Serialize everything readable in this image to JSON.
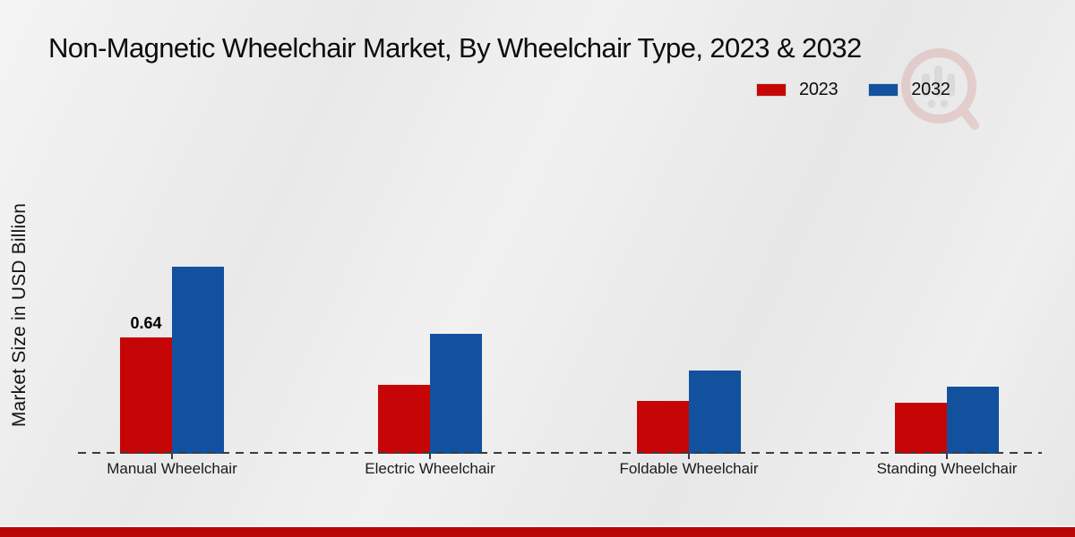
{
  "title": "Non-Magnetic Wheelchair Market, By Wheelchair Type, 2023 & 2032",
  "y_axis_label": "Market Size in USD Billion",
  "legend": {
    "items": [
      {
        "label": "2023",
        "color": "#c60606"
      },
      {
        "label": "2032",
        "color": "#11519e"
      }
    ]
  },
  "watermark": {
    "name": "market-research-logo",
    "ring_color": "#c24040",
    "bars_color": "#8f8f8f"
  },
  "footer": {
    "accent_color": "#b90707"
  },
  "chart_data": {
    "type": "bar",
    "title": "Non-Magnetic Wheelchair Market, By Wheelchair Type, 2023 & 2032",
    "categories": [
      "Manual Wheelchair",
      "Electric Wheelchair",
      "Foldable Wheelchair",
      "Standing Wheelchair"
    ],
    "series": [
      {
        "name": "2023",
        "color": "#c60606",
        "values": [
          0.64,
          0.38,
          0.29,
          0.28
        ]
      },
      {
        "name": "2032",
        "color": "#11519e",
        "values": [
          1.03,
          0.66,
          0.46,
          0.37
        ]
      }
    ],
    "xlabel": "",
    "ylabel": "Market Size in USD Billion",
    "ylim": [
      0,
      1.25
    ],
    "grid": false,
    "legend_position": "top-right",
    "baseline_style": "dashed",
    "data_labels": [
      {
        "series": "2023",
        "category": "Manual Wheelchair",
        "text": "0.64"
      }
    ]
  }
}
